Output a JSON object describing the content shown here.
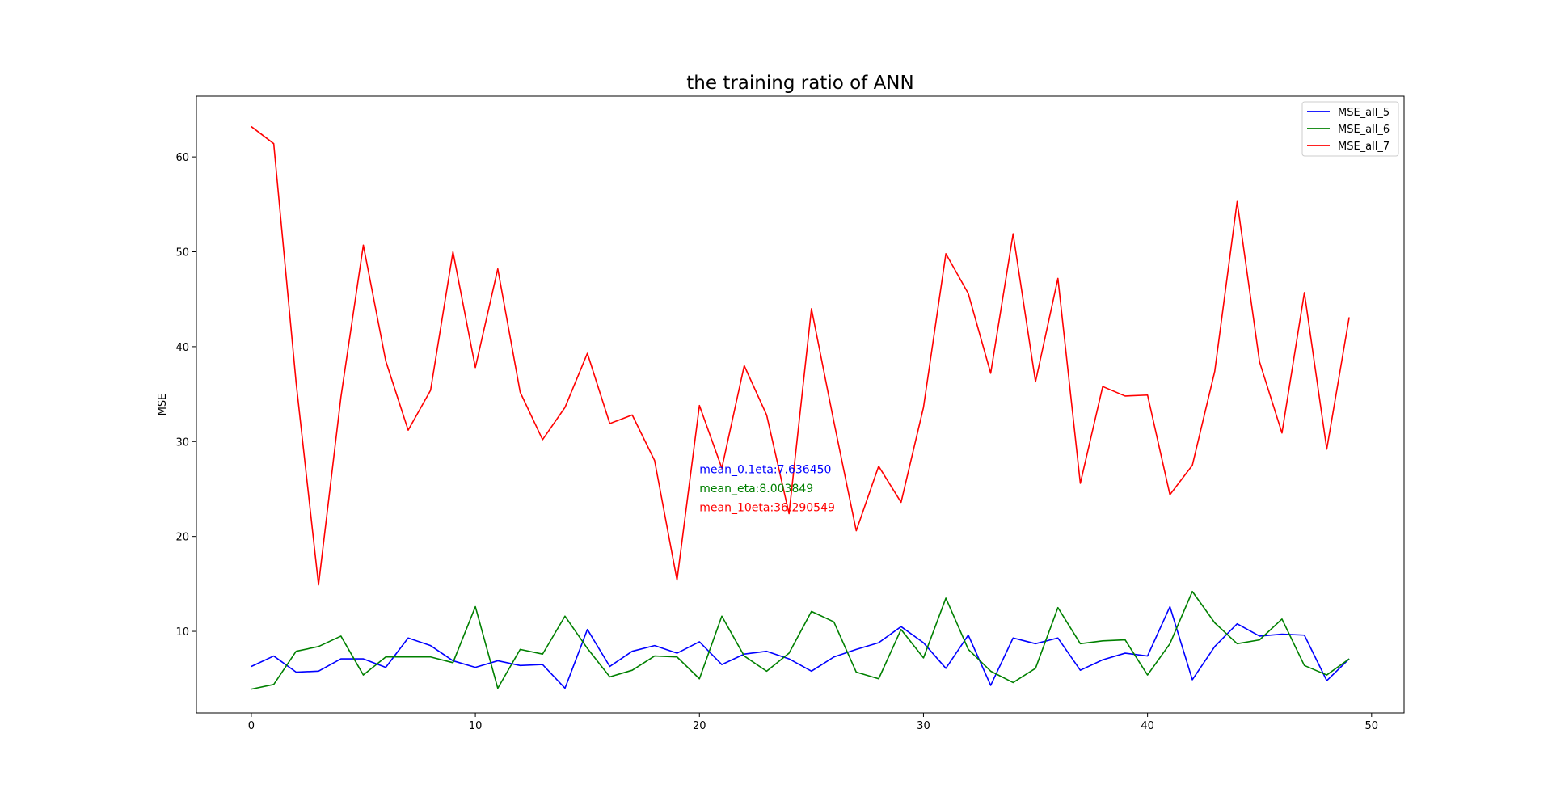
{
  "chart_data": {
    "type": "line",
    "title": "the training ratio of ANN",
    "xlabel": "",
    "ylabel": "MSE",
    "xlim": [
      -2.45,
      51.45
    ],
    "ylim": [
      1.4,
      66.4
    ],
    "xticks": [
      0,
      10,
      20,
      30,
      40,
      50
    ],
    "yticks": [
      10,
      20,
      30,
      40,
      50,
      60
    ],
    "grid": false,
    "legend_position": "top-right",
    "x": [
      0,
      1,
      2,
      3,
      4,
      5,
      6,
      7,
      8,
      9,
      10,
      11,
      12,
      13,
      14,
      15,
      16,
      17,
      18,
      19,
      20,
      21,
      22,
      23,
      24,
      25,
      26,
      27,
      28,
      29,
      30,
      31,
      32,
      33,
      34,
      35,
      36,
      37,
      38,
      39,
      40,
      41,
      42,
      43,
      44,
      45,
      46,
      47,
      48,
      49
    ],
    "series": [
      {
        "name": "MSE_all_5",
        "color": "#0000ff",
        "values": [
          6.3,
          7.4,
          5.7,
          5.8,
          7.1,
          7.1,
          6.2,
          9.3,
          8.5,
          6.9,
          6.2,
          6.9,
          6.4,
          6.5,
          4.0,
          10.2,
          6.3,
          7.9,
          8.5,
          7.7,
          8.9,
          6.5,
          7.6,
          7.9,
          7.1,
          5.8,
          7.3,
          8.1,
          8.8,
          10.5,
          8.8,
          6.1,
          9.6,
          4.3,
          9.3,
          8.7,
          9.3,
          5.9,
          7.0,
          7.7,
          7.4,
          12.6,
          4.9,
          8.4,
          10.8,
          9.5,
          9.7,
          9.6,
          4.8,
          7.1
        ]
      },
      {
        "name": "MSE_all_6",
        "color": "#008000",
        "values": [
          3.9,
          4.4,
          7.9,
          8.4,
          9.5,
          5.4,
          7.3,
          7.3,
          7.3,
          6.7,
          12.6,
          4.0,
          8.1,
          7.6,
          11.6,
          8.2,
          5.2,
          5.9,
          7.4,
          7.3,
          5.0,
          11.6,
          7.4,
          5.8,
          7.7,
          12.1,
          11.0,
          5.7,
          5.0,
          10.2,
          7.2,
          13.5,
          8.1,
          5.8,
          4.6,
          6.1,
          12.5,
          8.7,
          9.0,
          9.1,
          5.4,
          8.7,
          14.2,
          10.9,
          8.7,
          9.1,
          11.3,
          6.4,
          5.4,
          7.1
        ]
      },
      {
        "name": "MSE_all_7",
        "color": "#ff0000",
        "values": [
          63.2,
          61.4,
          36.2,
          14.9,
          34.7,
          50.7,
          38.5,
          31.2,
          35.4,
          50.0,
          37.8,
          48.2,
          35.2,
          30.2,
          33.6,
          39.3,
          31.9,
          32.8,
          28.0,
          15.4,
          33.8,
          27.2,
          38.0,
          32.8,
          22.4,
          44.0,
          32.1,
          20.6,
          27.4,
          23.6,
          33.6,
          49.8,
          45.6,
          37.2,
          51.9,
          36.3,
          47.2,
          25.6,
          35.8,
          34.8,
          34.9,
          24.4,
          27.5,
          37.4,
          55.3,
          38.4,
          30.9,
          45.7,
          29.2,
          43.1
        ]
      }
    ],
    "annotations": [
      {
        "text": "mean_0.1eta:7.636450",
        "color": "#0000ff",
        "x": 20,
        "y": 27.1
      },
      {
        "text": "mean_eta:8.003849",
        "color": "#008000",
        "x": 20,
        "y": 25.1
      },
      {
        "text": "mean_10eta:36.290549",
        "color": "#ff0000",
        "x": 20,
        "y": 23.1
      }
    ]
  }
}
